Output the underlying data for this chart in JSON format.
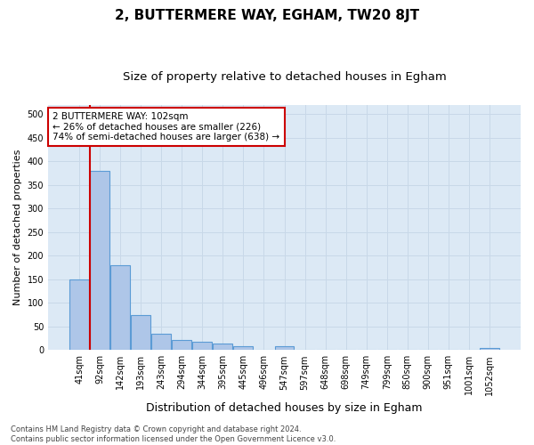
{
  "title": "2, BUTTERMERE WAY, EGHAM, TW20 8JT",
  "subtitle": "Size of property relative to detached houses in Egham",
  "xlabel": "Distribution of detached houses by size in Egham",
  "ylabel": "Number of detached properties",
  "categories": [
    "41sqm",
    "92sqm",
    "142sqm",
    "193sqm",
    "243sqm",
    "294sqm",
    "344sqm",
    "395sqm",
    "445sqm",
    "496sqm",
    "547sqm",
    "597sqm",
    "648sqm",
    "698sqm",
    "749sqm",
    "799sqm",
    "850sqm",
    "900sqm",
    "951sqm",
    "1001sqm",
    "1052sqm"
  ],
  "bar_heights": [
    150,
    380,
    180,
    75,
    35,
    22,
    17,
    14,
    8,
    0,
    8,
    0,
    0,
    0,
    0,
    0,
    0,
    0,
    0,
    0,
    5
  ],
  "bar_color": "#aec6e8",
  "bar_edge_color": "#5b9bd5",
  "grid_color": "#c8d8e8",
  "background_color": "#dce9f5",
  "vline_color": "#cc0000",
  "vline_x": 0.525,
  "annotation_text": "2 BUTTERMERE WAY: 102sqm\n← 26% of detached houses are smaller (226)\n74% of semi-detached houses are larger (638) →",
  "annotation_box_color": "#ffffff",
  "annotation_box_edge": "#cc0000",
  "ylim": [
    0,
    520
  ],
  "yticks": [
    0,
    50,
    100,
    150,
    200,
    250,
    300,
    350,
    400,
    450,
    500
  ],
  "footnote": "Contains HM Land Registry data © Crown copyright and database right 2024.\nContains public sector information licensed under the Open Government Licence v3.0.",
  "title_fontsize": 11,
  "subtitle_fontsize": 9.5,
  "xlabel_fontsize": 9,
  "ylabel_fontsize": 8,
  "annot_fontsize": 7.5,
  "tick_fontsize": 7,
  "footnote_fontsize": 6
}
